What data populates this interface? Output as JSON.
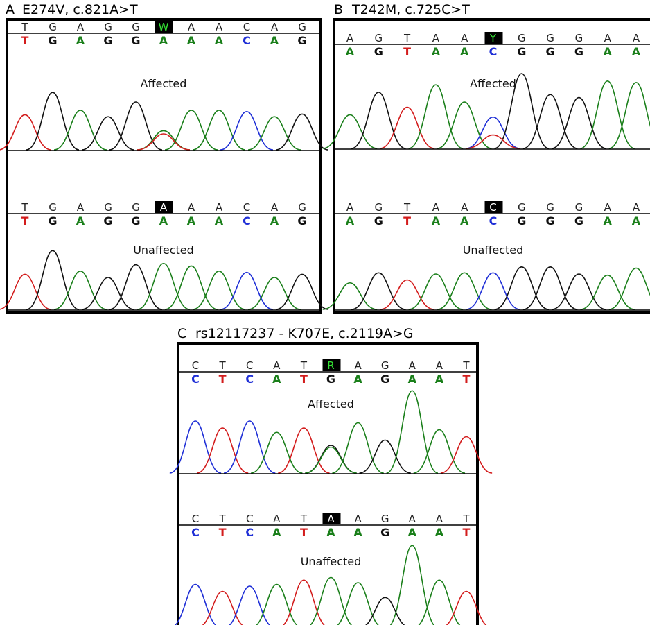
{
  "colors": {
    "A": "#1a7f1a",
    "G": "#111111",
    "C": "#1f2fd6",
    "T": "#d31c1c",
    "highlight_bg": "#000000",
    "ambiguous_text": "#34e034"
  },
  "panels": [
    {
      "id": "A",
      "letter": "A",
      "title": "E274V, c.821A>T",
      "sections": [
        {
          "status": "Affected",
          "top_seq": [
            "T",
            "G",
            "A",
            "G",
            "G",
            "W",
            "A",
            "A",
            "C",
            "A",
            "G"
          ],
          "called_seq": [
            "T",
            "G",
            "A",
            "G",
            "G",
            "A",
            "A",
            "A",
            "C",
            "A",
            "G"
          ],
          "highlight_index": 5,
          "highlight_ambiguous": true,
          "peak_heights": [
            0.55,
            0.9,
            0.62,
            0.52,
            0.75,
            0.3,
            0.62,
            0.62,
            0.6,
            0.52,
            0.56
          ],
          "secondary_peak": {
            "index": 5,
            "base": "T",
            "height": 0.25
          }
        },
        {
          "status": "Unaffected",
          "top_seq": [
            "T",
            "G",
            "A",
            "G",
            "G",
            "A",
            "A",
            "A",
            "C",
            "A",
            "G"
          ],
          "called_seq": [
            "T",
            "G",
            "A",
            "G",
            "G",
            "A",
            "A",
            "A",
            "C",
            "A",
            "G"
          ],
          "highlight_index": 5,
          "highlight_ambiguous": false,
          "peak_heights": [
            0.55,
            0.92,
            0.6,
            0.5,
            0.7,
            0.72,
            0.68,
            0.6,
            0.58,
            0.5,
            0.55
          ],
          "secondary_peak": null
        }
      ]
    },
    {
      "id": "B",
      "letter": "B",
      "title": "T242M, c.725C>T",
      "sections": [
        {
          "status": "Affected",
          "top_seq": [
            "A",
            "G",
            "T",
            "A",
            "A",
            "Y",
            "G",
            "G",
            "G",
            "A",
            "A"
          ],
          "called_seq": [
            "A",
            "G",
            "T",
            "A",
            "A",
            "C",
            "G",
            "G",
            "G",
            "A",
            "A"
          ],
          "highlight_index": 5,
          "highlight_ambiguous": true,
          "peak_heights": [
            0.45,
            0.75,
            0.55,
            0.85,
            0.62,
            0.42,
            1.0,
            0.72,
            0.68,
            0.9,
            0.88
          ],
          "secondary_peak": {
            "index": 5,
            "base": "T",
            "height": 0.18
          }
        },
        {
          "status": "Unaffected",
          "top_seq": [
            "A",
            "G",
            "T",
            "A",
            "A",
            "C",
            "G",
            "G",
            "G",
            "A",
            "A"
          ],
          "called_seq": [
            "A",
            "G",
            "T",
            "A",
            "A",
            "C",
            "G",
            "G",
            "G",
            "A",
            "A"
          ],
          "highlight_index": 5,
          "highlight_ambiguous": false,
          "peak_heights": [
            0.45,
            0.62,
            0.5,
            0.6,
            0.62,
            0.62,
            0.72,
            0.72,
            0.6,
            0.58,
            0.7
          ],
          "secondary_peak": null
        }
      ]
    },
    {
      "id": "C",
      "letter": "C",
      "title": "rs12117237 - K707E, c.2119A>G",
      "sections": [
        {
          "status": "Affected",
          "top_seq": [
            "C",
            "T",
            "C",
            "A",
            "T",
            "R",
            "A",
            "G",
            "A",
            "A",
            "T"
          ],
          "called_seq": [
            "C",
            "T",
            "C",
            "A",
            "T",
            "G",
            "A",
            "G",
            "A",
            "A",
            "T"
          ],
          "highlight_index": 5,
          "highlight_ambiguous": true,
          "peak_heights": [
            0.6,
            0.52,
            0.6,
            0.47,
            0.52,
            0.32,
            0.58,
            0.38,
            0.95,
            0.5,
            0.42
          ],
          "secondary_peak": {
            "index": 5,
            "base": "A",
            "height": 0.3
          }
        },
        {
          "status": "Unaffected",
          "top_seq": [
            "C",
            "T",
            "C",
            "A",
            "T",
            "A",
            "A",
            "G",
            "A",
            "A",
            "T"
          ],
          "called_seq": [
            "C",
            "T",
            "C",
            "A",
            "T",
            "A",
            "A",
            "G",
            "A",
            "A",
            "T"
          ],
          "highlight_index": 5,
          "highlight_ambiguous": false,
          "peak_heights": [
            0.5,
            0.42,
            0.48,
            0.5,
            0.55,
            0.58,
            0.52,
            0.35,
            0.95,
            0.55,
            0.42
          ],
          "secondary_peak": null
        }
      ]
    }
  ]
}
